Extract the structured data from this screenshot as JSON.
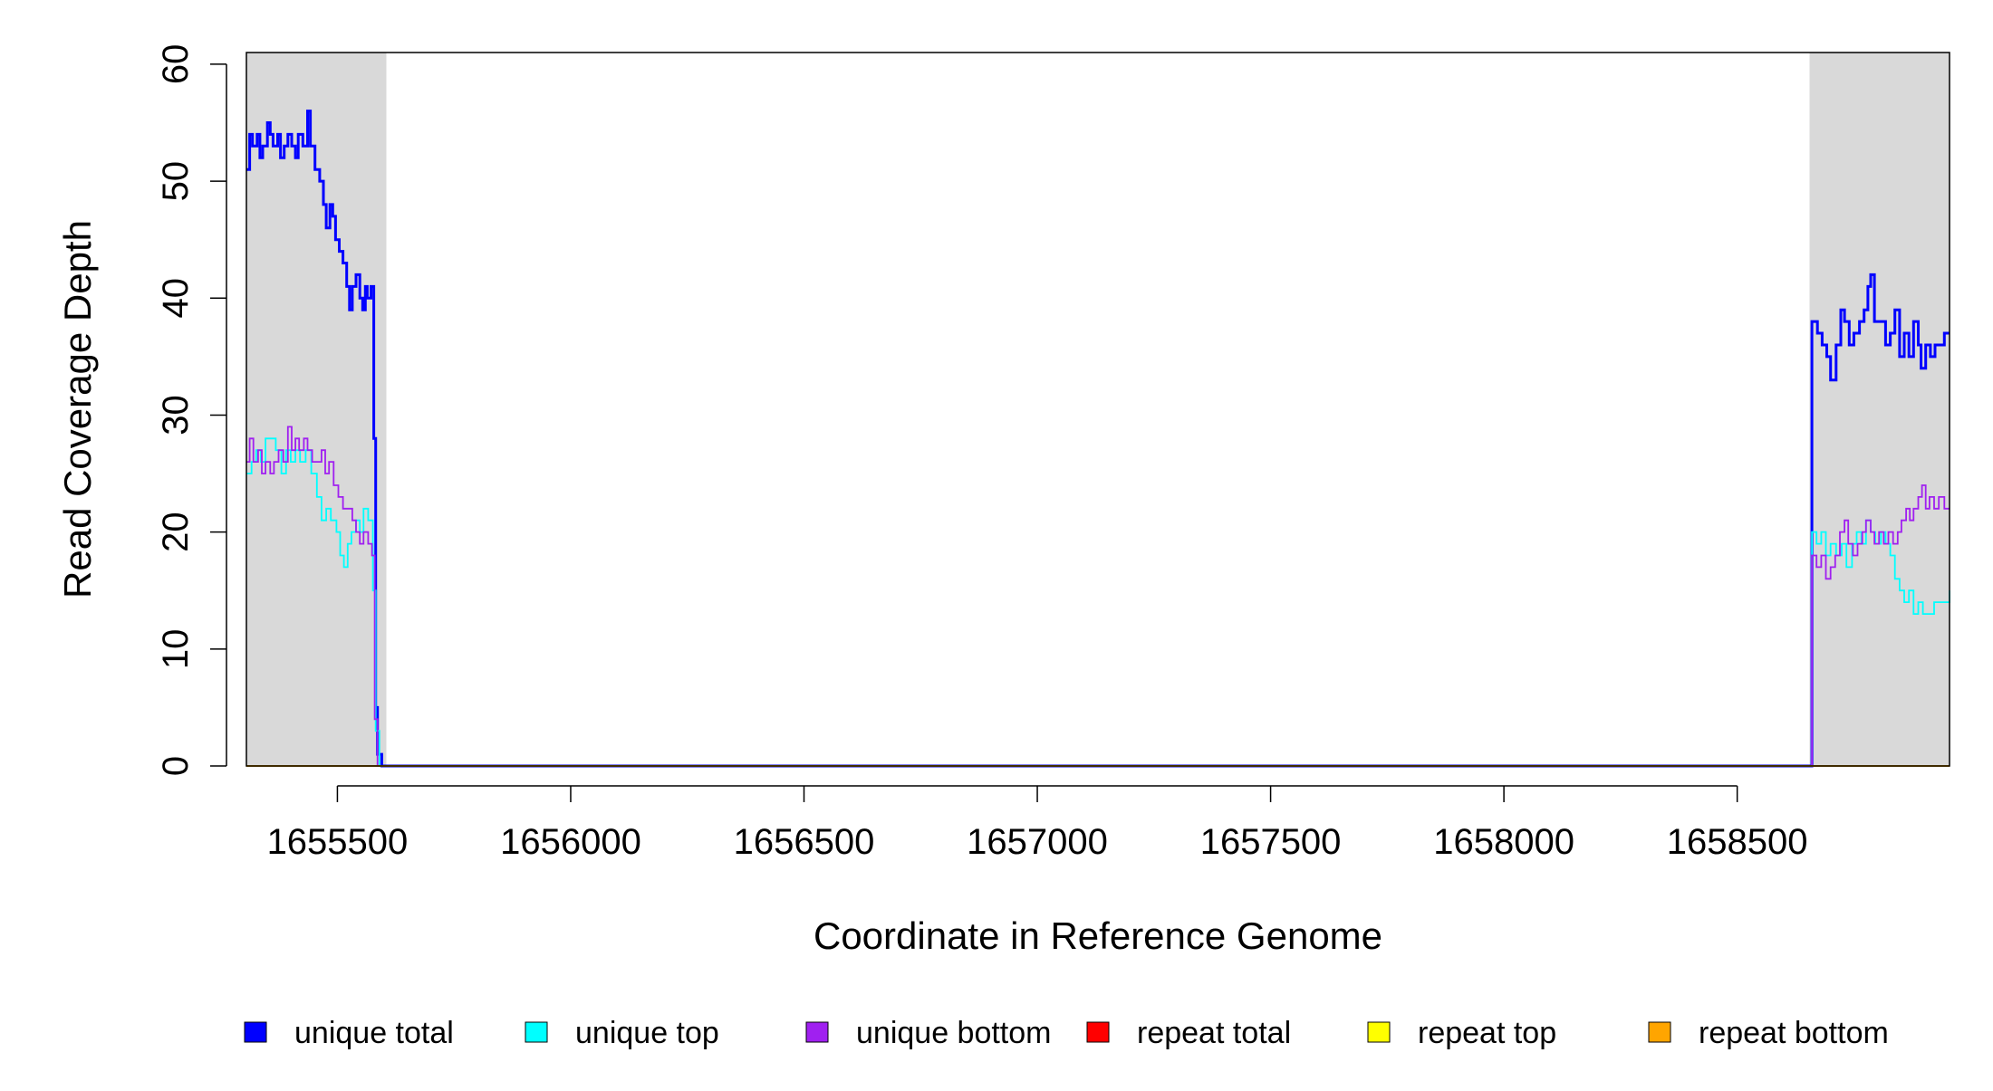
{
  "chart_data": {
    "type": "line",
    "title": "",
    "xlabel": "Coordinate in Reference Genome",
    "ylabel": "Read Coverage Depth",
    "xlim": [
      1655305,
      1658955
    ],
    "ylim": [
      0,
      61
    ],
    "x_ticks": [
      1655500,
      1656000,
      1656500,
      1657000,
      1657500,
      1658000,
      1658500
    ],
    "x_tick_labels": [
      "1655500",
      "1656000",
      "1656500",
      "1657000",
      "1657500",
      "1658000",
      "1658500"
    ],
    "y_ticks": [
      0,
      10,
      20,
      30,
      40,
      50,
      60
    ],
    "y_tick_labels": [
      "0",
      "10",
      "20",
      "30",
      "40",
      "50",
      "60"
    ],
    "grid": false,
    "shaded_regions": [
      {
        "x_start": 1655305,
        "x_end": 1655605,
        "color": "#d9d9d9"
      },
      {
        "x_start": 1658655,
        "x_end": 1658955,
        "color": "#d9d9d9"
      }
    ],
    "legend_position": "bottom",
    "series": [
      {
        "name": "unique total",
        "color": "#0000ff",
        "points": [
          [
            1655305,
            51
          ],
          [
            1655312,
            54
          ],
          [
            1655318,
            53
          ],
          [
            1655328,
            54
          ],
          [
            1655334,
            52
          ],
          [
            1655340,
            53
          ],
          [
            1655350,
            55
          ],
          [
            1655356,
            54
          ],
          [
            1655362,
            53
          ],
          [
            1655372,
            54
          ],
          [
            1655378,
            52
          ],
          [
            1655386,
            53
          ],
          [
            1655394,
            54
          ],
          [
            1655402,
            53
          ],
          [
            1655410,
            52
          ],
          [
            1655416,
            54
          ],
          [
            1655426,
            53
          ],
          [
            1655436,
            56
          ],
          [
            1655442,
            53
          ],
          [
            1655452,
            51
          ],
          [
            1655462,
            50
          ],
          [
            1655470,
            48
          ],
          [
            1655476,
            46
          ],
          [
            1655484,
            48
          ],
          [
            1655490,
            47
          ],
          [
            1655496,
            45
          ],
          [
            1655504,
            44
          ],
          [
            1655512,
            43
          ],
          [
            1655520,
            41
          ],
          [
            1655526,
            39
          ],
          [
            1655532,
            41
          ],
          [
            1655540,
            42
          ],
          [
            1655548,
            40
          ],
          [
            1655554,
            39
          ],
          [
            1655560,
            41
          ],
          [
            1655564,
            40
          ],
          [
            1655572,
            41
          ],
          [
            1655578,
            28
          ],
          [
            1655582,
            5
          ],
          [
            1655586,
            1
          ],
          [
            1655595,
            0
          ],
          [
            1658655,
            0
          ],
          [
            1658660,
            38
          ],
          [
            1658672,
            37
          ],
          [
            1658682,
            36
          ],
          [
            1658692,
            35
          ],
          [
            1658700,
            33
          ],
          [
            1658712,
            36
          ],
          [
            1658722,
            39
          ],
          [
            1658730,
            38
          ],
          [
            1658740,
            36
          ],
          [
            1658750,
            37
          ],
          [
            1658762,
            38
          ],
          [
            1658772,
            39
          ],
          [
            1658780,
            41
          ],
          [
            1658786,
            42
          ],
          [
            1658794,
            38
          ],
          [
            1658808,
            38
          ],
          [
            1658818,
            36
          ],
          [
            1658828,
            37
          ],
          [
            1658838,
            39
          ],
          [
            1658848,
            35
          ],
          [
            1658858,
            37
          ],
          [
            1658868,
            35
          ],
          [
            1658878,
            38
          ],
          [
            1658888,
            36
          ],
          [
            1658894,
            34
          ],
          [
            1658904,
            36
          ],
          [
            1658914,
            35
          ],
          [
            1658924,
            36
          ],
          [
            1658934,
            36
          ],
          [
            1658944,
            37
          ],
          [
            1658955,
            37
          ]
        ]
      },
      {
        "name": "unique top",
        "color": "#00ffff",
        "points": [
          [
            1655305,
            25
          ],
          [
            1655316,
            26
          ],
          [
            1655326,
            27
          ],
          [
            1655336,
            26
          ],
          [
            1655346,
            28
          ],
          [
            1655358,
            28
          ],
          [
            1655368,
            27
          ],
          [
            1655380,
            25
          ],
          [
            1655390,
            27
          ],
          [
            1655400,
            26
          ],
          [
            1655410,
            27
          ],
          [
            1655420,
            26
          ],
          [
            1655432,
            27
          ],
          [
            1655444,
            25
          ],
          [
            1655456,
            23
          ],
          [
            1655466,
            21
          ],
          [
            1655476,
            22
          ],
          [
            1655486,
            21
          ],
          [
            1655498,
            20
          ],
          [
            1655506,
            18
          ],
          [
            1655514,
            17
          ],
          [
            1655522,
            19
          ],
          [
            1655530,
            20
          ],
          [
            1655540,
            21
          ],
          [
            1655548,
            20
          ],
          [
            1655556,
            22
          ],
          [
            1655566,
            21
          ],
          [
            1655576,
            15
          ],
          [
            1655582,
            3
          ],
          [
            1655590,
            0
          ],
          [
            1658655,
            0
          ],
          [
            1658660,
            20
          ],
          [
            1658670,
            19
          ],
          [
            1658680,
            20
          ],
          [
            1658690,
            18
          ],
          [
            1658700,
            19
          ],
          [
            1658712,
            18
          ],
          [
            1658724,
            19
          ],
          [
            1658734,
            17
          ],
          [
            1658746,
            19
          ],
          [
            1658756,
            20
          ],
          [
            1658766,
            19
          ],
          [
            1658776,
            21
          ],
          [
            1658786,
            20
          ],
          [
            1658796,
            19
          ],
          [
            1658808,
            20
          ],
          [
            1658818,
            19
          ],
          [
            1658828,
            18
          ],
          [
            1658838,
            16
          ],
          [
            1658848,
            15
          ],
          [
            1658858,
            14
          ],
          [
            1658868,
            15
          ],
          [
            1658878,
            13
          ],
          [
            1658888,
            14
          ],
          [
            1658898,
            13
          ],
          [
            1658910,
            13
          ],
          [
            1658922,
            14
          ],
          [
            1658934,
            14
          ],
          [
            1658955,
            15
          ]
        ]
      },
      {
        "name": "unique bottom",
        "color": "#a020f0",
        "points": [
          [
            1655305,
            26
          ],
          [
            1655312,
            28
          ],
          [
            1655320,
            26
          ],
          [
            1655330,
            27
          ],
          [
            1655338,
            25
          ],
          [
            1655346,
            26
          ],
          [
            1655356,
            25
          ],
          [
            1655364,
            26
          ],
          [
            1655374,
            27
          ],
          [
            1655384,
            26
          ],
          [
            1655394,
            29
          ],
          [
            1655402,
            27
          ],
          [
            1655410,
            28
          ],
          [
            1655418,
            27
          ],
          [
            1655428,
            28
          ],
          [
            1655436,
            27
          ],
          [
            1655446,
            26
          ],
          [
            1655456,
            26
          ],
          [
            1655466,
            27
          ],
          [
            1655474,
            25
          ],
          [
            1655482,
            26
          ],
          [
            1655492,
            24
          ],
          [
            1655502,
            23
          ],
          [
            1655512,
            22
          ],
          [
            1655522,
            22
          ],
          [
            1655532,
            21
          ],
          [
            1655540,
            20
          ],
          [
            1655548,
            19
          ],
          [
            1655556,
            20
          ],
          [
            1655566,
            19
          ],
          [
            1655574,
            18
          ],
          [
            1655580,
            4
          ],
          [
            1655586,
            0
          ],
          [
            1658655,
            0
          ],
          [
            1658660,
            18
          ],
          [
            1658670,
            17
          ],
          [
            1658680,
            18
          ],
          [
            1658690,
            16
          ],
          [
            1658700,
            17
          ],
          [
            1658710,
            18
          ],
          [
            1658720,
            20
          ],
          [
            1658730,
            21
          ],
          [
            1658738,
            19
          ],
          [
            1658748,
            18
          ],
          [
            1658758,
            19
          ],
          [
            1658768,
            20
          ],
          [
            1658776,
            21
          ],
          [
            1658786,
            20
          ],
          [
            1658794,
            19
          ],
          [
            1658804,
            20
          ],
          [
            1658814,
            19
          ],
          [
            1658824,
            20
          ],
          [
            1658834,
            19
          ],
          [
            1658844,
            20
          ],
          [
            1658852,
            21
          ],
          [
            1658862,
            22
          ],
          [
            1658870,
            21
          ],
          [
            1658878,
            22
          ],
          [
            1658888,
            23
          ],
          [
            1658896,
            24
          ],
          [
            1658904,
            22
          ],
          [
            1658912,
            23
          ],
          [
            1658922,
            22
          ],
          [
            1658932,
            23
          ],
          [
            1658944,
            22
          ],
          [
            1658955,
            22
          ]
        ]
      },
      {
        "name": "repeat total",
        "color": "#ff0000",
        "points": [
          [
            1655305,
            0
          ],
          [
            1658955,
            0
          ]
        ]
      },
      {
        "name": "repeat top",
        "color": "#ffff00",
        "points": [
          [
            1655305,
            0
          ],
          [
            1658955,
            0
          ]
        ]
      },
      {
        "name": "repeat bottom",
        "color": "#ffa500",
        "points": [
          [
            1655305,
            0
          ],
          [
            1658955,
            0
          ]
        ]
      }
    ]
  }
}
